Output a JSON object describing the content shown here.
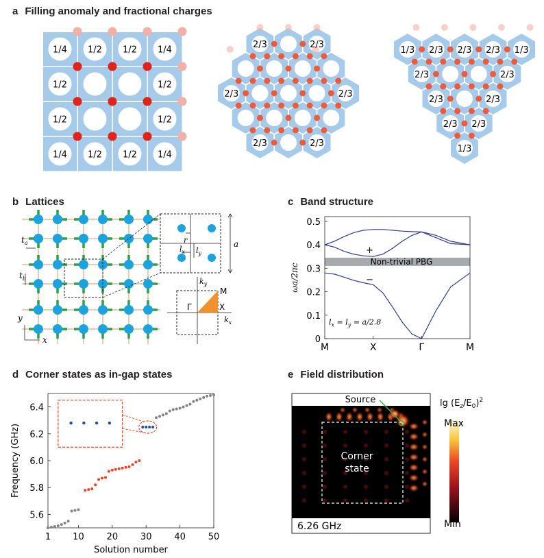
{
  "panel_a": {
    "letter": "a",
    "title": "Filling anomaly and fractional charges",
    "square_grid": [
      [
        "1/4",
        "1/2",
        "1/2",
        "1/4"
      ],
      [
        "1/2",
        "",
        "",
        "1/2"
      ],
      [
        "1/2",
        "",
        "",
        "1/2"
      ],
      [
        "1/4",
        "1/2",
        "1/2",
        "1/4"
      ]
    ],
    "hex_hexagon_labels": [
      "2/3",
      "2/3",
      "2/3",
      "2/3",
      "2/3",
      "2/3"
    ],
    "hex_triangle_labels": [
      "1/3",
      "2/3",
      "2/3",
      "2/3",
      "1/3",
      "2/3",
      "2/3",
      "2/3",
      "2/3",
      "2/3",
      "2/3",
      "1/3"
    ]
  },
  "panel_b": {
    "letter": "b",
    "title": "Lattices",
    "t_a": "t",
    "t_a_sub": "a",
    "t_b": "t",
    "t_b_sub": "b",
    "axis_x": "x",
    "axis_y": "y",
    "r": "r",
    "lx": "l",
    "lx_sub": "x",
    "ly": "l",
    "ly_sub": "y",
    "a": "a",
    "ky": "k",
    "ky_sub": "y",
    "kx": "k",
    "kx_sub": "x",
    "gamma": "Γ",
    "X": "X",
    "M": "M"
  },
  "panel_c": {
    "letter": "c",
    "title": "Band structure",
    "chart_data": {
      "type": "line",
      "title": "Band structure",
      "ylabel": "ωa/2πc",
      "xlabel": "",
      "x_ticks": [
        "M",
        "X",
        "Γ",
        "M"
      ],
      "y_ticks": [
        "0",
        "0.1",
        "0.2",
        "0.3",
        "0.4",
        "0.5"
      ],
      "ylim": [
        0,
        0.52
      ],
      "gap": [
        0.31,
        0.345
      ],
      "gap_label": "Non-trivial PBG",
      "plus_label": "+",
      "minus_label": "−",
      "param_l": "l",
      "param_x": "x",
      "param_eq": " = ",
      "param_y": "y",
      "param_val": " = a/2.8",
      "series": [
        {
          "name": "band1",
          "x": [
            0,
            0.2,
            0.4,
            0.6,
            0.8,
            1,
            1.2,
            1.4,
            1.6,
            1.8,
            2,
            2.3,
            2.6,
            3
          ],
          "values": [
            0.28,
            0.275,
            0.262,
            0.248,
            0.238,
            0.23,
            0.195,
            0.135,
            0.07,
            0.02,
            0,
            0.12,
            0.22,
            0.28
          ]
        },
        {
          "name": "band2",
          "x": [
            0,
            0.2,
            0.4,
            0.6,
            0.8,
            1,
            1.2,
            1.4,
            1.6,
            1.8,
            2,
            2.3,
            2.6,
            3
          ],
          "values": [
            0.4,
            0.39,
            0.372,
            0.36,
            0.353,
            0.35,
            0.36,
            0.385,
            0.415,
            0.44,
            0.455,
            0.44,
            0.415,
            0.4
          ]
        },
        {
          "name": "band3",
          "x": [
            0,
            0.2,
            0.4,
            0.6,
            0.8,
            1,
            1.2,
            1.4,
            1.6,
            1.8,
            2,
            2.3,
            2.6,
            3
          ],
          "values": [
            0.4,
            0.415,
            0.435,
            0.452,
            0.462,
            0.465,
            0.465,
            0.462,
            0.458,
            0.456,
            0.455,
            0.43,
            0.405,
            0.4
          ]
        }
      ]
    }
  },
  "panel_d": {
    "letter": "d",
    "title": "Corner states as in-gap states",
    "chart_data": {
      "type": "scatter",
      "title": "Corner states as in-gap states",
      "xlabel": "Solution number",
      "ylabel": "Frequency (GHz)",
      "xlim": [
        1,
        50
      ],
      "ylim": [
        5.5,
        6.5
      ],
      "x_ticks": [
        1,
        10,
        20,
        30,
        40,
        50
      ],
      "y_ticks": [
        5.6,
        5.8,
        6.0,
        6.2,
        6.4
      ],
      "series": [
        {
          "name": "bulk-lower",
          "color": "#808285",
          "x": [
            1,
            2,
            3,
            4,
            5,
            6,
            7,
            8,
            9,
            10
          ],
          "values": [
            5.5,
            5.505,
            5.51,
            5.515,
            5.525,
            5.535,
            5.55,
            5.625,
            5.63,
            5.635
          ]
        },
        {
          "name": "edge",
          "color": "#ef4123",
          "x": [
            12,
            13,
            14,
            15,
            16,
            17,
            18,
            19,
            20,
            21,
            22,
            23,
            24,
            25,
            26,
            27,
            28
          ],
          "values": [
            5.78,
            5.785,
            5.79,
            5.82,
            5.86,
            5.87,
            5.875,
            5.92,
            5.93,
            5.935,
            5.94,
            5.945,
            5.95,
            5.955,
            5.97,
            5.99,
            6.0
          ]
        },
        {
          "name": "corner",
          "color": "#2b4a9b",
          "x": [
            29,
            30,
            31,
            32
          ],
          "values": [
            6.25,
            6.25,
            6.25,
            6.25
          ]
        },
        {
          "name": "bulk-upper",
          "color": "#808285",
          "x": [
            33,
            34,
            35,
            36,
            37,
            38,
            39,
            40,
            41,
            42,
            43,
            44,
            45,
            46,
            47,
            48,
            49,
            50
          ],
          "values": [
            6.32,
            6.33,
            6.34,
            6.35,
            6.37,
            6.38,
            6.385,
            6.39,
            6.4,
            6.41,
            6.42,
            6.44,
            6.45,
            6.46,
            6.47,
            6.48,
            6.485,
            6.49
          ]
        }
      ],
      "inset_series": {
        "name": "corner-zoom",
        "color": "#2b4a9b",
        "count": 4
      }
    }
  },
  "panel_e": {
    "letter": "e",
    "title": "Field distribution",
    "source_label": "Source",
    "corner_label_1": "Corner",
    "corner_label_2": "state",
    "freq_label": "6.26 GHz",
    "colorbar_title": "lg (E",
    "colorbar_z": "z",
    "colorbar_mid": "/E",
    "colorbar_0": "0",
    "colorbar_end": ")",
    "colorbar_sup": "2",
    "colorbar_max": "Max",
    "colorbar_min": "Min"
  }
}
